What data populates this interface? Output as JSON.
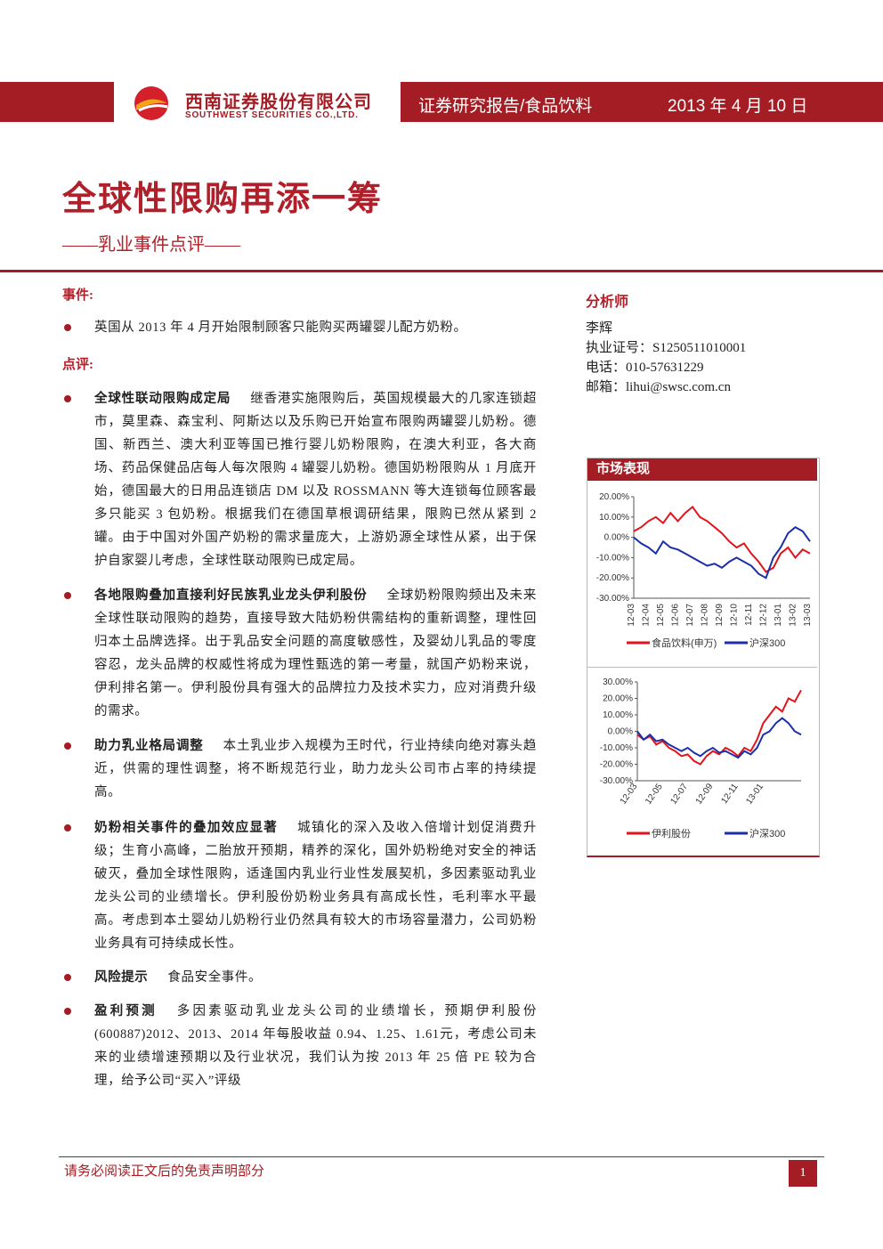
{
  "header": {
    "company_cn": "西南证券股份有限公司",
    "company_en": "SOUTHWEST SECURITIES CO.,LTD.",
    "category": "证券研究报告/食品饮料",
    "date": "2013 年 4 月 10 日"
  },
  "title": "全球性限购再添一筹",
  "subtitle": "——乳业事件点评——",
  "event": {
    "heading": "事件:",
    "text": "英国从 2013 年 4 月开始限制顾客只能购买两罐婴儿配方奶粉。"
  },
  "comment": {
    "heading": "点评:",
    "items": [
      {
        "lead": "全球性联动限购成定局",
        "text": "继香港实施限购后，英国规模最大的几家连锁超市，莫里森、森宝利、阿斯达以及乐购已开始宣布限购两罐婴儿奶粉。德国、新西兰、澳大利亚等国已推行婴儿奶粉限购，在澳大利亚，各大商场、药品保健品店每人每次限购 4 罐婴儿奶粉。德国奶粉限购从 1 月底开始，德国最大的日用品连锁店 DM 以及 ROSSMANN 等大连锁每位顾客最多只能买 3 包奶粉。根据我们在德国草根调研结果，限购已然从紧到 2 罐。由于中国对外国产奶粉的需求量庞大，上游奶源全球性从紧，出于保护自家婴儿考虑，全球性联动限购已成定局。"
      },
      {
        "lead": "各地限购叠加直接利好民族乳业龙头伊利股份",
        "text": "全球奶粉限购频出及未来全球性联动限购的趋势，直接导致大陆奶粉供需结构的重新调整，理性回归本土品牌选择。出于乳品安全问题的高度敏感性，及婴幼儿乳品的零度容忍，龙头品牌的权威性将成为理性甄选的第一考量，就国产奶粉来说，伊利排名第一。伊利股份具有强大的品牌拉力及技术实力，应对消费升级的需求。"
      },
      {
        "lead": "助力乳业格局调整",
        "text": "本土乳业步入规模为王时代，行业持续向绝对寡头趋近，供需的理性调整，将不断规范行业，助力龙头公司市占率的持续提高。"
      },
      {
        "lead": "奶粉相关事件的叠加效应显著",
        "text": "城镇化的深入及收入倍增计划促消费升级；生育小高峰，二胎放开预期，精养的深化，国外奶粉绝对安全的神话破灭，叠加全球性限购，适逢国内乳业行业性发展契机，多因素驱动乳业龙头公司的业绩增长。伊利股份奶粉业务具有高成长性，毛利率水平最高。考虑到本土婴幼儿奶粉行业仍然具有较大的市场容量潜力，公司奶粉业务具有可持续成长性。"
      },
      {
        "lead": "风险提示",
        "text": "食品安全事件。"
      },
      {
        "lead": "盈利预测",
        "text": "多因素驱动乳业龙头公司的业绩增长，预期伊利股份(600887)2012、2013、2014 年每股收益 0.94、1.25、1.61元，考虑公司未来的业绩增速预期以及行业状况，我们认为按 2013 年 25 倍 PE 较为合理，给予公司“买入”评级"
      }
    ]
  },
  "analyst": {
    "heading": "分析师",
    "name": "李辉",
    "license": "执业证号：S1250511010001",
    "phone": "电话：010-57631229",
    "email": "邮箱：lihui@swsc.com.cn"
  },
  "market": {
    "heading": "市场表现"
  },
  "footer": {
    "disclaimer": "请务必阅读正文后的免责声明部分",
    "page": "1"
  },
  "chart_data": [
    {
      "type": "line",
      "ylim": [
        -30,
        20
      ],
      "yticks": [
        {
          "value": 20,
          "label": "20.00%"
        },
        {
          "value": 10,
          "label": "10.00%"
        },
        {
          "value": 0,
          "label": "0.00%"
        },
        {
          "value": -10,
          "label": "-10.00%"
        },
        {
          "value": -20,
          "label": "-20.00%"
        },
        {
          "value": -30,
          "label": "-30.00%"
        }
      ],
      "categories": [
        "12-03",
        null,
        "12-04",
        null,
        "12-05",
        null,
        "12-06",
        null,
        "12-07",
        null,
        "12-08",
        null,
        "12-09",
        null,
        "12-10",
        null,
        "12-11",
        null,
        "12-12",
        null,
        "13-01",
        null,
        "13-02",
        null,
        "13-03"
      ],
      "series": [
        {
          "name": "食品饮料(申万)",
          "color": "#e3131b",
          "values": [
            3,
            5,
            8,
            10,
            7,
            12,
            8,
            12,
            15,
            10,
            8,
            5,
            2,
            -2,
            -5,
            -3,
            -8,
            -12,
            -17,
            -15,
            -8,
            -5,
            -10,
            -6,
            -8
          ]
        },
        {
          "name": "沪深300",
          "color": "#1c2fa8",
          "values": [
            0,
            -3,
            -5,
            -8,
            -2,
            -5,
            -6,
            -8,
            -10,
            -12,
            -14,
            -13,
            -15,
            -12,
            -10,
            -12,
            -14,
            -18,
            -20,
            -10,
            -5,
            2,
            5,
            3,
            -2
          ]
        }
      ]
    },
    {
      "type": "line",
      "ylim": [
        -30,
        30
      ],
      "yticks": [
        {
          "value": 30,
          "label": "30.00%"
        },
        {
          "value": 20,
          "label": "20.00%"
        },
        {
          "value": 10,
          "label": "10.00%"
        },
        {
          "value": 0,
          "label": "0.00%"
        },
        {
          "value": -10,
          "label": "-10.00%"
        },
        {
          "value": -20,
          "label": "-20.00%"
        },
        {
          "value": -30,
          "label": "-30.00%"
        }
      ],
      "categories": [
        "12-03",
        null,
        null,
        null,
        "12-05",
        null,
        null,
        null,
        "12-07",
        null,
        null,
        null,
        "12-09",
        null,
        null,
        null,
        "12-11",
        null,
        null,
        null,
        "13-01",
        null,
        null,
        null,
        null,
        null,
        null
      ],
      "series": [
        {
          "name": "伊利股份",
          "color": "#e3131b",
          "values": [
            -2,
            -5,
            -3,
            -8,
            -6,
            -10,
            -12,
            -15,
            -14,
            -18,
            -20,
            -15,
            -12,
            -14,
            -10,
            -12,
            -15,
            -10,
            -12,
            -5,
            5,
            10,
            15,
            12,
            20,
            18,
            25
          ]
        },
        {
          "name": "沪深300",
          "color": "#1c2fa8",
          "values": [
            0,
            -5,
            -2,
            -6,
            -5,
            -8,
            -10,
            -12,
            -10,
            -13,
            -15,
            -12,
            -10,
            -13,
            -12,
            -14,
            -16,
            -12,
            -14,
            -10,
            -2,
            0,
            5,
            8,
            5,
            0,
            -2
          ]
        }
      ]
    }
  ]
}
